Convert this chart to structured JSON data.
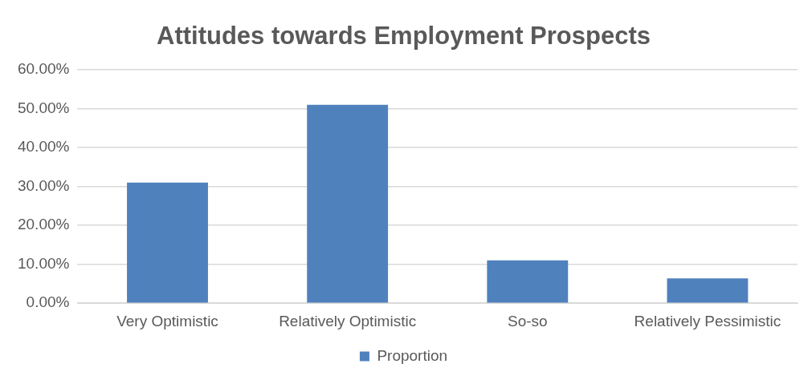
{
  "chart_data": {
    "type": "bar",
    "title": "Attitudes towards Employment Prospects",
    "categories": [
      "Very Optimistic",
      "Relatively Optimistic",
      "So-so",
      "Relatively Pessimistic"
    ],
    "series": [
      {
        "name": "Proportion",
        "color": "#4f81bd",
        "values": [
          31,
          51,
          11,
          6.4
        ]
      }
    ],
    "ylim": [
      0,
      60
    ],
    "yticks": [
      {
        "value": 0,
        "label": "0.00%"
      },
      {
        "value": 10,
        "label": "10.00%"
      },
      {
        "value": 20,
        "label": "20.00%"
      },
      {
        "value": 30,
        "label": "30.00%"
      },
      {
        "value": 40,
        "label": "40.00%"
      },
      {
        "value": 50,
        "label": "50.00%"
      },
      {
        "value": 60,
        "label": "60.00%"
      }
    ],
    "grid": "y",
    "legend": "bottom"
  }
}
